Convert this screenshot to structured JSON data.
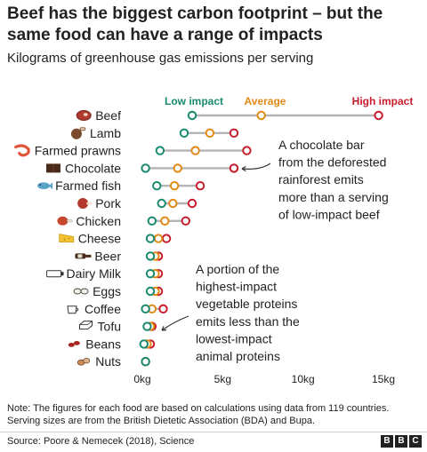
{
  "header": {
    "title": "Beef has the biggest carbon footprint – but the same food can have a range of impacts",
    "subtitle": "Kilograms of greenhouse gas emissions per serving"
  },
  "colors": {
    "low": "#1a8a6f",
    "average": "#e28a16",
    "high": "#c81c2c",
    "range": "#b4b4b4"
  },
  "chart_data": {
    "type": "dot-range",
    "xlim": [
      0,
      15
    ],
    "xticks": [
      {
        "value": 0,
        "label": "0kg"
      },
      {
        "value": 5,
        "label": "5kg"
      },
      {
        "value": 10,
        "label": "10kg"
      },
      {
        "value": 15,
        "label": "15kg"
      }
    ],
    "legend": {
      "low": "Low impact",
      "average": "Average",
      "high": "High impact",
      "placement": "top"
    },
    "items": [
      {
        "name": "Beef",
        "icon": "steak-icon",
        "low": 3.1,
        "avg": 7.4,
        "high": 14.7
      },
      {
        "name": "Lamb",
        "icon": "lamb-icon",
        "low": 2.6,
        "avg": 4.2,
        "high": 5.7
      },
      {
        "name": "Farmed prawns",
        "icon": "prawn-icon",
        "low": 1.1,
        "avg": 3.3,
        "high": 6.5
      },
      {
        "name": "Chocolate",
        "icon": "chocolate-bar-icon",
        "low": 0.2,
        "avg": 2.2,
        "high": 5.7
      },
      {
        "name": "Farmed fish",
        "icon": "fish-icon",
        "low": 0.9,
        "avg": 2.0,
        "high": 3.6
      },
      {
        "name": "Pork",
        "icon": "ham-icon",
        "low": 1.2,
        "avg": 1.9,
        "high": 3.1
      },
      {
        "name": "Chicken",
        "icon": "chicken-leg-icon",
        "low": 0.6,
        "avg": 1.4,
        "high": 2.7
      },
      {
        "name": "Cheese",
        "icon": "cheese-icon",
        "low": 0.5,
        "avg": 1.0,
        "high": 1.5
      },
      {
        "name": "Beer",
        "icon": "beer-bottle-icon",
        "low": 0.5,
        "avg": 0.8,
        "high": 1.0
      },
      {
        "name": "Dairy Milk",
        "icon": "milk-carton-icon",
        "low": 0.5,
        "avg": 0.8,
        "high": 1.0
      },
      {
        "name": "Eggs",
        "icon": "eggs-icon",
        "low": 0.5,
        "avg": 0.8,
        "high": 1.0
      },
      {
        "name": "Coffee",
        "icon": "coffee-cup-icon",
        "low": 0.2,
        "avg": 0.6,
        "high": 1.3
      },
      {
        "name": "Tofu",
        "icon": "tofu-icon",
        "low": 0.3,
        "avg": 0.5,
        "high": 0.6
      },
      {
        "name": "Beans",
        "icon": "beans-icon",
        "low": 0.1,
        "avg": 0.3,
        "high": 0.5
      },
      {
        "name": "Nuts",
        "icon": "nuts-icon",
        "low": 0.2,
        "avg": 0.2,
        "high": 0.2
      }
    ],
    "annotations": [
      {
        "id": "chocolate",
        "lines": [
          "A chocolate bar",
          "from the deforested",
          "rainforest emits",
          "more than a serving",
          "of low-impact beef"
        ]
      },
      {
        "id": "proteins",
        "lines": [
          "A portion of the",
          "highest-impact",
          "vegetable proteins",
          "emits less than the",
          "lowest-impact",
          "animal proteins"
        ]
      }
    ]
  },
  "footer": {
    "note": "Note: The figures for each food are based on calculations using data from 119 countries. Serving sizes are from the British Dietetic Association (BDA) and Bupa.",
    "source": "Source: Poore & Nemecek (2018), Science",
    "logo_letters": [
      "B",
      "B",
      "C"
    ]
  }
}
